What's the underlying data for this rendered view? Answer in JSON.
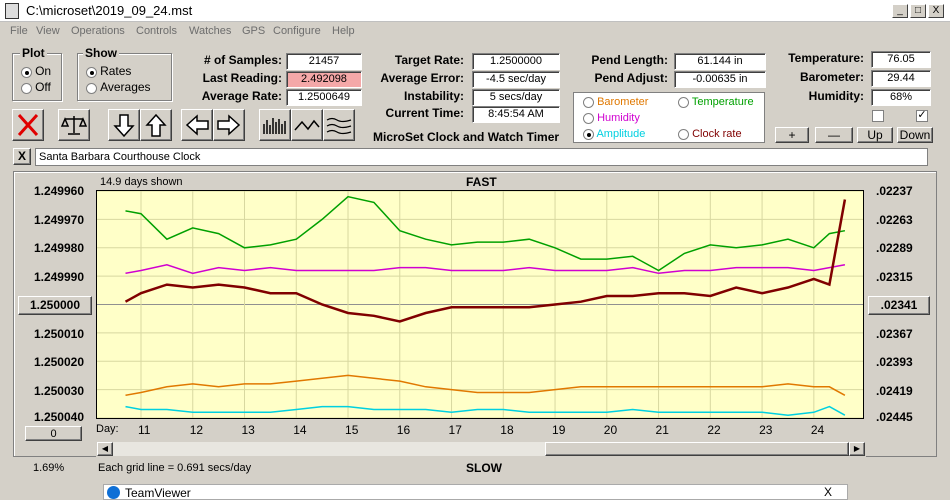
{
  "window": {
    "title": "C:\\microset\\2019_09_24.mst",
    "min": "_",
    "max": "□",
    "close": "X"
  },
  "menu": [
    "File",
    "View",
    "Operations",
    "Controls",
    "Watches",
    "GPS",
    "Configure",
    "Help"
  ],
  "plot_group": {
    "title": "Plot",
    "options": [
      "On",
      "Off"
    ],
    "selected": "On"
  },
  "show_group": {
    "title": "Show",
    "options": [
      "Rates",
      "Averages"
    ],
    "selected": "Rates"
  },
  "stats": {
    "samples_label": "# of Samples:",
    "samples": "21457",
    "last_label": "Last Reading:",
    "last": "2.492098",
    "avg_label": "Average Rate:",
    "avg": "1.2500649"
  },
  "target": {
    "target_label": "Target Rate:",
    "target": "1.2500000",
    "error_label": "Average Error:",
    "error": "-4.5 sec/day",
    "instab_label": "Instability:",
    "instab": "5 secs/day",
    "time_label": "Current Time:",
    "time": "8:45:54 AM",
    "app_name": "MicroSet Clock and Watch Timer"
  },
  "pend": {
    "length_label": "Pend Length:",
    "length": "61.144 in",
    "adjust_label": "Pend Adjust:",
    "adjust": "-0.00635 in"
  },
  "series_select": {
    "barometer": "Barometer",
    "temperature": "Temperature",
    "humidity": "Humidity",
    "amplitude": "Amplitude",
    "clock_rate": "Clock rate",
    "selected": "Amplitude",
    "colors": {
      "barometer": "#e07800",
      "temperature": "#00a000",
      "humidity": "#d000d0",
      "amplitude": "#00d0e0",
      "clock_rate": "#800000"
    }
  },
  "env": {
    "temp_label": "Temperature:",
    "temp": "76.05",
    "baro_label": "Barometer:",
    "baro": "29.44",
    "hum_label": "Humidity:",
    "hum": "68%",
    "check1": "",
    "check2": "✓"
  },
  "env_buttons": {
    "plus": "+",
    "minus": "—",
    "up": "Up",
    "down": "Down"
  },
  "clock_name": "Santa Barbara Courthouse Clock",
  "clear_btn": "X",
  "chart": {
    "shown": "14.9 days shown",
    "top_label": "FAST",
    "bottom_label": "SLOW",
    "grid_note": "Each grid line = 0.691 secs/day",
    "percent": "1.69%",
    "zero_btn": "0",
    "day_label": "Day:",
    "left_axis": [
      "1.249960",
      "1.249970",
      "1.249980",
      "1.249990",
      "1.250000",
      "1.250010",
      "1.250020",
      "1.250030",
      "1.250040"
    ],
    "right_axis": [
      ".02237",
      ".02263",
      ".02289",
      ".02315",
      ".02341",
      ".02367",
      ".02393",
      ".02419",
      ".02445"
    ]
  },
  "chart_data": {
    "type": "line",
    "x": [
      10.7,
      11,
      11.5,
      12,
      12.5,
      13,
      13.5,
      14,
      14.5,
      15,
      15.5,
      16,
      16.5,
      17,
      17.5,
      18,
      18.5,
      19,
      19.5,
      20,
      20.5,
      21,
      21.5,
      22,
      22.5,
      23,
      23.5,
      24,
      24.3,
      24.6
    ],
    "x_ticks": [
      11,
      12,
      13,
      14,
      15,
      16,
      17,
      18,
      19,
      20,
      21,
      22,
      23,
      24
    ],
    "ylim": [
      1.25004,
      1.24996
    ],
    "series": [
      {
        "name": "Temperature",
        "color": "#00a000",
        "values": [
          1.249967,
          1.249968,
          1.249977,
          1.249973,
          1.249975,
          1.24998,
          1.249979,
          1.249977,
          1.24997,
          1.249962,
          1.249964,
          1.249974,
          1.249977,
          1.249979,
          1.249978,
          1.249978,
          1.249977,
          1.24998,
          1.249984,
          1.249984,
          1.249983,
          1.249988,
          1.249982,
          1.249979,
          1.24998,
          1.249979,
          1.249977,
          1.24998,
          1.249975,
          1.249974
        ]
      },
      {
        "name": "Humidity",
        "color": "#d000d0",
        "values": [
          1.249989,
          1.249988,
          1.249986,
          1.249989,
          1.249987,
          1.249988,
          1.249987,
          1.249988,
          1.249988,
          1.249988,
          1.249988,
          1.249987,
          1.249987,
          1.249988,
          1.249988,
          1.249988,
          1.249987,
          1.249988,
          1.249988,
          1.249988,
          1.249987,
          1.249989,
          1.249988,
          1.249988,
          1.249987,
          1.249987,
          1.249987,
          1.249988,
          1.249987,
          1.249986
        ]
      },
      {
        "name": "Clock rate",
        "color": "#800000",
        "values": [
          1.249999,
          1.249996,
          1.249993,
          1.249994,
          1.249993,
          1.249994,
          1.249996,
          1.249996,
          1.25,
          1.250003,
          1.250004,
          1.250006,
          1.250003,
          1.250001,
          1.250001,
          1.250001,
          1.250001,
          1.25,
          1.249999,
          1.249997,
          1.249997,
          1.249996,
          1.249996,
          1.249997,
          1.249994,
          1.249996,
          1.249994,
          1.249991,
          1.249993,
          1.249963
        ]
      },
      {
        "name": "Barometer",
        "color": "#e07800",
        "values": [
          1.250032,
          1.250031,
          1.250029,
          1.250028,
          1.250029,
          1.250028,
          1.250028,
          1.250027,
          1.250026,
          1.250025,
          1.250026,
          1.250027,
          1.250029,
          1.25003,
          1.250031,
          1.250031,
          1.250031,
          1.25003,
          1.250029,
          1.250029,
          1.250029,
          1.250029,
          1.250029,
          1.250029,
          1.250029,
          1.250029,
          1.250028,
          1.250029,
          1.250029,
          1.250032
        ]
      },
      {
        "name": "Amplitude",
        "color": "#00d0e0",
        "values": [
          1.250036,
          1.250037,
          1.250037,
          1.250038,
          1.250038,
          1.250038,
          1.250038,
          1.250037,
          1.250036,
          1.250036,
          1.250037,
          1.250037,
          1.250037,
          1.250038,
          1.250037,
          1.250037,
          1.250038,
          1.250038,
          1.250038,
          1.250038,
          1.250037,
          1.250038,
          1.250038,
          1.250038,
          1.250038,
          1.250038,
          1.250039,
          1.250038,
          1.250036,
          1.250039
        ]
      }
    ]
  },
  "taskbar": {
    "teamviewer": "TeamViewer",
    "close": "X"
  }
}
